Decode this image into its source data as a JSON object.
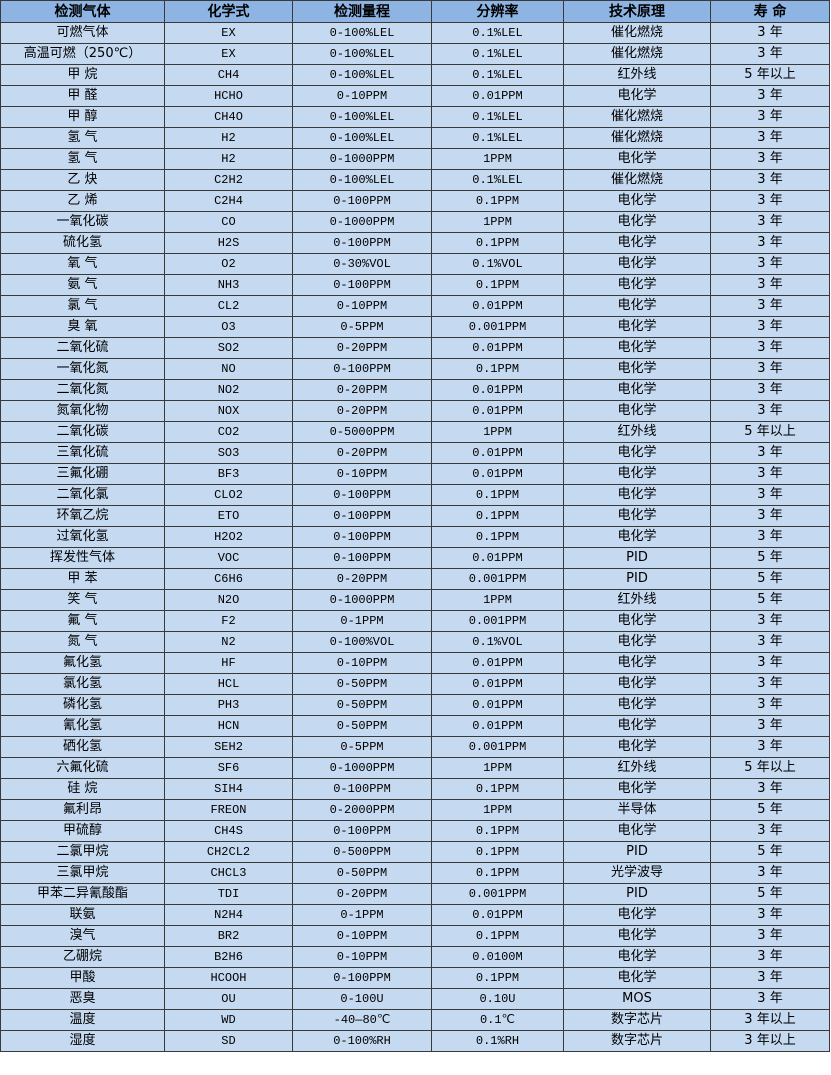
{
  "colors": {
    "header_bg": "#8db4e2",
    "cell_bg": "#c5d9f1",
    "border": "#3a3a3a"
  },
  "headers": [
    "检测气体",
    "化学式",
    "检测量程",
    "分辨率",
    "技术原理",
    "寿 命"
  ],
  "rows": [
    [
      "可燃气体",
      "EX",
      "0-100%LEL",
      "0.1%LEL",
      "催化燃烧",
      "3 年"
    ],
    [
      "高温可燃（250℃）",
      "EX",
      "0-100%LEL",
      "0.1%LEL",
      "催化燃烧",
      "3 年"
    ],
    [
      "甲 烷",
      "CH4",
      "0-100%LEL",
      "0.1%LEL",
      "红外线",
      "5 年以上"
    ],
    [
      "甲 醛",
      "HCHO",
      "0-10PPM",
      "0.01PPM",
      "电化学",
      "3 年"
    ],
    [
      "甲 醇",
      "CH4O",
      "0-100%LEL",
      "0.1%LEL",
      "催化燃烧",
      "3 年"
    ],
    [
      "氢 气",
      "H2",
      "0-100%LEL",
      "0.1%LEL",
      "催化燃烧",
      "3 年"
    ],
    [
      "氢 气",
      "H2",
      "0-1000PPM",
      "1PPM",
      "电化学",
      "3 年"
    ],
    [
      "乙 炔",
      "C2H2",
      "0-100%LEL",
      "0.1%LEL",
      "催化燃烧",
      "3 年"
    ],
    [
      "乙 烯",
      "C2H4",
      "0-100PPM",
      "0.1PPM",
      "电化学",
      "3 年"
    ],
    [
      "一氧化碳",
      "CO",
      "0-1000PPM",
      "1PPM",
      "电化学",
      "3 年"
    ],
    [
      "硫化氢",
      "H2S",
      "0-100PPM",
      "0.1PPM",
      "电化学",
      "3 年"
    ],
    [
      "氧 气",
      "O2",
      "0-30%VOL",
      "0.1%VOL",
      "电化学",
      "3 年"
    ],
    [
      "氨 气",
      "NH3",
      "0-100PPM",
      "0.1PPM",
      "电化学",
      "3 年"
    ],
    [
      "氯 气",
      "CL2",
      "0-10PPM",
      "0.01PPM",
      "电化学",
      "3 年"
    ],
    [
      "臭 氧",
      "O3",
      "0-5PPM",
      "0.001PPM",
      "电化学",
      "3 年"
    ],
    [
      "二氧化硫",
      "SO2",
      "0-20PPM",
      "0.01PPM",
      "电化学",
      "3 年"
    ],
    [
      "一氧化氮",
      "NO",
      "0-100PPM",
      "0.1PPM",
      "电化学",
      "3 年"
    ],
    [
      "二氧化氮",
      "NO2",
      "0-20PPM",
      "0.01PPM",
      "电化学",
      "3 年"
    ],
    [
      "氮氧化物",
      "NOX",
      "0-20PPM",
      "0.01PPM",
      "电化学",
      "3 年"
    ],
    [
      "二氧化碳",
      "CO2",
      "0-5000PPM",
      "1PPM",
      "红外线",
      "5 年以上"
    ],
    [
      "三氧化硫",
      "SO3",
      "0-20PPM",
      "0.01PPM",
      "电化学",
      "3 年"
    ],
    [
      "三氟化硼",
      "BF3",
      "0-10PPM",
      "0.01PPM",
      "电化学",
      "3 年"
    ],
    [
      "二氧化氯",
      "CLO2",
      "0-100PPM",
      "0.1PPM",
      "电化学",
      "3 年"
    ],
    [
      "环氧乙烷",
      "ETO",
      "0-100PPM",
      "0.1PPM",
      "电化学",
      "3 年"
    ],
    [
      "过氧化氢",
      "H2O2",
      "0-100PPM",
      "0.1PPM",
      "电化学",
      "3 年"
    ],
    [
      "挥发性气体",
      "VOC",
      "0-100PPM",
      "0.01PPM",
      "PID",
      "5 年"
    ],
    [
      "甲 苯",
      "C6H6",
      "0-20PPM",
      "0.001PPM",
      "PID",
      "5 年"
    ],
    [
      "笑 气",
      "N2O",
      "0-1000PPM",
      "1PPM",
      "红外线",
      "5 年"
    ],
    [
      "氟 气",
      "F2",
      "0-1PPM",
      "0.001PPM",
      "电化学",
      "3 年"
    ],
    [
      "氮 气",
      "N2",
      "0-100%VOL",
      "0.1%VOL",
      "电化学",
      "3 年"
    ],
    [
      "氟化氢",
      "HF",
      "0-10PPM",
      "0.01PPM",
      "电化学",
      "3 年"
    ],
    [
      "氯化氢",
      "HCL",
      "0-50PPM",
      "0.01PPM",
      "电化学",
      "3 年"
    ],
    [
      "磷化氢",
      "PH3",
      "0-50PPM",
      "0.01PPM",
      "电化学",
      "3 年"
    ],
    [
      "氰化氢",
      "HCN",
      "0-50PPM",
      "0.01PPM",
      "电化学",
      "3 年"
    ],
    [
      "硒化氢",
      "SEH2",
      "0-5PPM",
      "0.001PPM",
      "电化学",
      "3 年"
    ],
    [
      "六氟化硫",
      "SF6",
      "0-1000PPM",
      "1PPM",
      "红外线",
      "5 年以上"
    ],
    [
      "硅 烷",
      "SIH4",
      "0-100PPM",
      "0.1PPM",
      "电化学",
      "3 年"
    ],
    [
      "氟利昂",
      "FREON",
      "0-2000PPM",
      "1PPM",
      "半导体",
      "5 年"
    ],
    [
      "甲硫醇",
      "CH4S",
      "0-100PPM",
      "0.1PPM",
      "电化学",
      "3 年"
    ],
    [
      "二氯甲烷",
      "CH2CL2",
      "0-500PPM",
      "0.1PPM",
      "PID",
      "5 年"
    ],
    [
      "三氯甲烷",
      "CHCL3",
      "0-50PPM",
      "0.1PPM",
      "光学波导",
      "3 年"
    ],
    [
      "甲苯二异氰酸酯",
      "TDI",
      "0-20PPM",
      "0.001PPM",
      "PID",
      "5 年"
    ],
    [
      "联氨",
      "N2H4",
      "0-1PPM",
      "0.01PPM",
      "电化学",
      "3 年"
    ],
    [
      "溴气",
      "BR2",
      "0-10PPM",
      "0.1PPM",
      "电化学",
      "3 年"
    ],
    [
      "乙硼烷",
      "B2H6",
      "0-10PPM",
      "0.0100M",
      "电化学",
      "3 年"
    ],
    [
      "甲酸",
      "HCOOH",
      "0-100PPM",
      "0.1PPM",
      "电化学",
      "3 年"
    ],
    [
      "恶臭",
      "OU",
      "0-100U",
      "0.10U",
      "MOS",
      "3 年"
    ],
    [
      "温度",
      "WD",
      "-40—80℃",
      "0.1℃",
      "数字芯片",
      "3 年以上"
    ],
    [
      "湿度",
      "SD",
      "0-100%RH",
      "0.1%RH",
      "数字芯片",
      "3 年以上"
    ]
  ]
}
